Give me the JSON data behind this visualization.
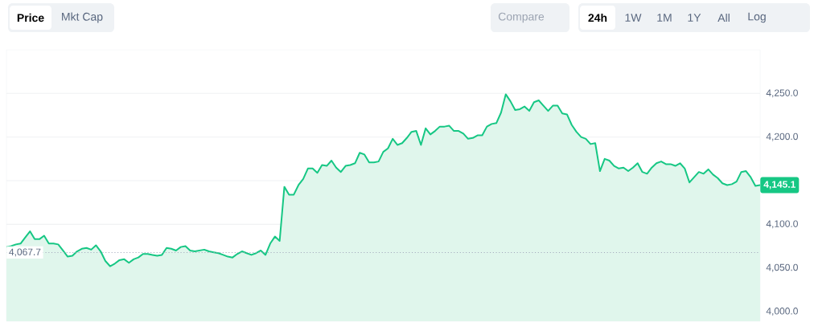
{
  "chart_data": {
    "type": "area",
    "color": "#16c784",
    "ylim": [
      3989,
      4300
    ],
    "tick_labels": "y",
    "grid": "y",
    "line_style": "solid",
    "yticks": [
      {
        "value": 4000,
        "label": "4,000.0"
      },
      {
        "value": 4050,
        "label": "4,050.0"
      },
      {
        "value": 4100,
        "label": "4,100.0"
      },
      {
        "value": 4150,
        "label": null
      },
      {
        "value": 4200,
        "label": "4,200.0"
      },
      {
        "value": 4250,
        "label": "4,250.0"
      }
    ],
    "categories": [
      null,
      null,
      null,
      null,
      null,
      null,
      null,
      null,
      null,
      null,
      null,
      null,
      null,
      null,
      null,
      null,
      null,
      null,
      null,
      null,
      null,
      null,
      null,
      null,
      null,
      null,
      null,
      null,
      null,
      null,
      null,
      null,
      null,
      null,
      null,
      null,
      null,
      null,
      null,
      null,
      null,
      null,
      null,
      null,
      null,
      null,
      null,
      null,
      null,
      null,
      null,
      null,
      null,
      null,
      null,
      null,
      null,
      null,
      null,
      null,
      null,
      null,
      null,
      null,
      null,
      null,
      null,
      null,
      null,
      null,
      null,
      null,
      null,
      null,
      null,
      null,
      null,
      null,
      null,
      null,
      null,
      null,
      null,
      null,
      null,
      null,
      null,
      null,
      null,
      null,
      null,
      null,
      null,
      null,
      null,
      null,
      null,
      null,
      null,
      null,
      null,
      null,
      null,
      null,
      null,
      null,
      null,
      null,
      null,
      null,
      null,
      null,
      null,
      null,
      null,
      null,
      null,
      null,
      null,
      null,
      null,
      null,
      null,
      null,
      null,
      null,
      null,
      null,
      null,
      null,
      null,
      null,
      null,
      null,
      null,
      null,
      null,
      null,
      null,
      null,
      null,
      null,
      null,
      null,
      null,
      null,
      null,
      null,
      null,
      null,
      null,
      null,
      null,
      null,
      null,
      null,
      null,
      null,
      null,
      null,
      null
    ],
    "values": [
      4074,
      4075,
      4077,
      4078,
      4085,
      4092,
      4083,
      4083,
      4087,
      4078,
      4078,
      4077,
      4070,
      4063,
      4064,
      4069,
      4072,
      4073,
      4071,
      4076,
      4069,
      4058,
      4052,
      4055,
      4059,
      4060,
      4056,
      4060,
      4062,
      4066,
      4066,
      4065,
      4064,
      4065,
      4073,
      4072,
      4070,
      4074,
      4075,
      4070,
      4069,
      4070,
      4071,
      4069,
      4068,
      4067,
      4065,
      4063,
      4062,
      4066,
      4069,
      4067,
      4065,
      4067,
      4070,
      4065,
      4078,
      4086,
      4081,
      4143,
      4134,
      4134,
      4145,
      4152,
      4164,
      4164,
      4159,
      4168,
      4167,
      4173,
      4165,
      4160,
      4167,
      4168,
      4170,
      4182,
      4180,
      4171,
      4171,
      4172,
      4183,
      4187,
      4198,
      4191,
      4193,
      4199,
      4206,
      4207,
      4191,
      4210,
      4203,
      4207,
      4212,
      4212,
      4213,
      4207,
      4207,
      4204,
      4198,
      4199,
      4202,
      4202,
      4212,
      4215,
      4216,
      4228,
      4249,
      4241,
      4231,
      4232,
      4235,
      4230,
      4240,
      4242,
      4236,
      4230,
      4236,
      4236,
      4227,
      4226,
      4214,
      4206,
      4200,
      4198,
      4192,
      4193,
      4161,
      4175,
      4173,
      4167,
      4164,
      4165,
      4161,
      4165,
      4170,
      4160,
      4158,
      4165,
      4170,
      4172,
      4169,
      4169,
      4167,
      4170,
      4164,
      4148,
      4154,
      4160,
      4158,
      4163,
      4157,
      4153,
      4147,
      4145,
      4146,
      4149,
      4160,
      4161,
      4154,
      4144,
      4145
    ],
    "ref_lines": [
      {
        "axis": "y",
        "value": 4067.7,
        "label": "4,067.7",
        "color": "#a1a7bb",
        "line_style": "dotted"
      }
    ],
    "annotations": [
      "Price",
      "Mkt Cap",
      "Compare",
      "24h",
      "1W",
      "1M",
      "1Y",
      "All",
      "Log",
      "4,145.1"
    ]
  }
}
